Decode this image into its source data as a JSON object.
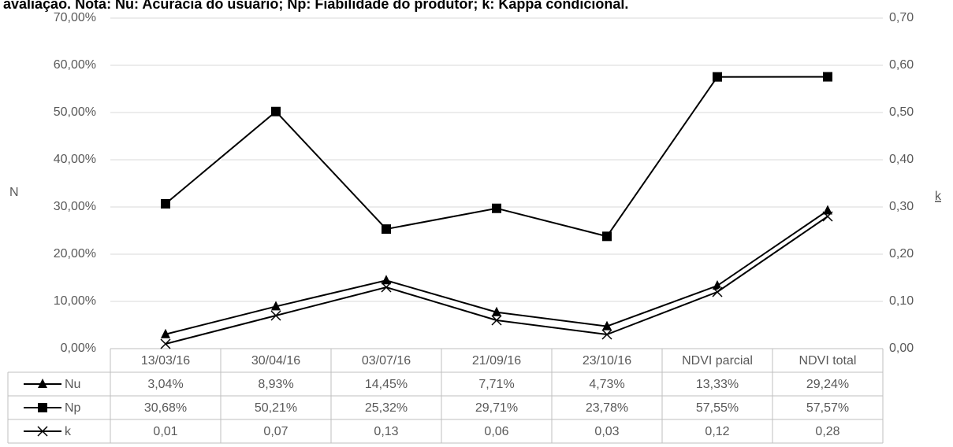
{
  "chart_data": {
    "type": "line",
    "title": "avaliação. Nota: Nu: Acurácia do usuário; Np: Fiabilidade do produtor; k: Kappa condicional.",
    "ylabel": "N",
    "y2label": "k",
    "categories": [
      "13/03/16",
      "30/04/16",
      "03/07/16",
      "21/09/16",
      "23/10/16",
      "NDVI parcial",
      "NDVI total"
    ],
    "series": [
      {
        "name": "Nu",
        "color": "#000000",
        "marker": "triangle",
        "values": [
          3.04,
          8.93,
          14.45,
          7.71,
          4.73,
          13.33,
          29.24
        ],
        "value_labels": [
          "3,04%",
          "8,93%",
          "14,45%",
          "7,71%",
          "4,73%",
          "13,33%",
          "29,24%"
        ]
      },
      {
        "name": "Np",
        "color": "#000000",
        "marker": "square",
        "values": [
          30.68,
          50.21,
          25.32,
          29.71,
          23.78,
          57.55,
          57.57
        ],
        "value_labels": [
          "30,68%",
          "50,21%",
          "25,32%",
          "29,71%",
          "23,78%",
          "57,55%",
          "57,57%"
        ]
      },
      {
        "name": "k",
        "color": "#000000",
        "marker": "x",
        "axis": "y2",
        "values": [
          0.01,
          0.07,
          0.13,
          0.06,
          0.03,
          0.12,
          0.28
        ],
        "value_labels": [
          "0,01",
          "0,07",
          "0,13",
          "0,06",
          "0,03",
          "0,12",
          "0,28"
        ]
      }
    ],
    "ylim": [
      0,
      70
    ],
    "yticks": [
      {
        "value": 0,
        "label": "0,00%"
      },
      {
        "value": 10,
        "label": "10,00%"
      },
      {
        "value": 20,
        "label": "20,00%"
      },
      {
        "value": 30,
        "label": "30,00%"
      },
      {
        "value": 40,
        "label": "40,00%"
      },
      {
        "value": 50,
        "label": "50,00%"
      },
      {
        "value": 60,
        "label": "60,00%"
      },
      {
        "value": 70,
        "label": "70,00%"
      }
    ],
    "y2lim": [
      0,
      0.7
    ],
    "y2ticks": [
      {
        "value": 0,
        "label": "0,00"
      },
      {
        "value": 0.1,
        "label": "0,10"
      },
      {
        "value": 0.2,
        "label": "0,20"
      },
      {
        "value": 0.3,
        "label": "0,30"
      },
      {
        "value": 0.4,
        "label": "0,40"
      },
      {
        "value": 0.5,
        "label": "0,50"
      },
      {
        "value": 0.6,
        "label": "0,60"
      },
      {
        "value": 0.7,
        "label": "0,70"
      }
    ],
    "grid": true
  }
}
